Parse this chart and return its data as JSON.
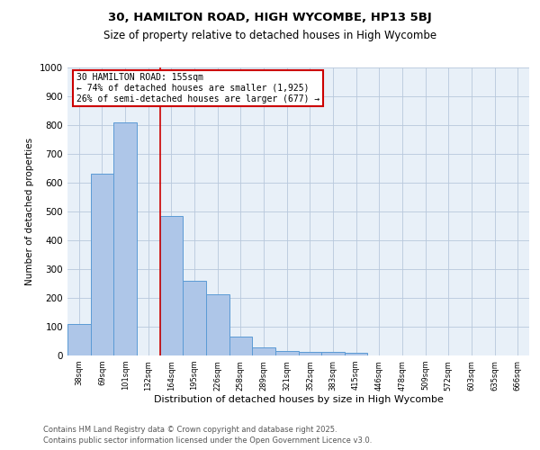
{
  "title1": "30, HAMILTON ROAD, HIGH WYCOMBE, HP13 5BJ",
  "title2": "Size of property relative to detached houses in High Wycombe",
  "xlabel": "Distribution of detached houses by size in High Wycombe",
  "ylabel": "Number of detached properties",
  "categories": [
    "38sqm",
    "69sqm",
    "101sqm",
    "132sqm",
    "164sqm",
    "195sqm",
    "226sqm",
    "258sqm",
    "289sqm",
    "321sqm",
    "352sqm",
    "383sqm",
    "415sqm",
    "446sqm",
    "478sqm",
    "509sqm",
    "572sqm",
    "603sqm",
    "635sqm",
    "666sqm"
  ],
  "values": [
    110,
    632,
    810,
    0,
    483,
    258,
    213,
    65,
    27,
    17,
    11,
    11,
    8,
    0,
    0,
    0,
    0,
    0,
    0,
    0
  ],
  "bar_color": "#aec6e8",
  "bar_edge_color": "#5b9bd5",
  "annotation_text": "30 HAMILTON ROAD: 155sqm\n← 74% of detached houses are smaller (1,925)\n26% of semi-detached houses are larger (677) →",
  "annotation_box_color": "#ffffff",
  "annotation_box_edge": "#cc0000",
  "vline_color": "#cc0000",
  "footer1": "Contains HM Land Registry data © Crown copyright and database right 2025.",
  "footer2": "Contains public sector information licensed under the Open Government Licence v3.0.",
  "ylim": [
    0,
    1000
  ],
  "yticks": [
    0,
    100,
    200,
    300,
    400,
    500,
    600,
    700,
    800,
    900,
    1000
  ],
  "bg_color": "#e8f0f8",
  "fig_bg": "#ffffff"
}
